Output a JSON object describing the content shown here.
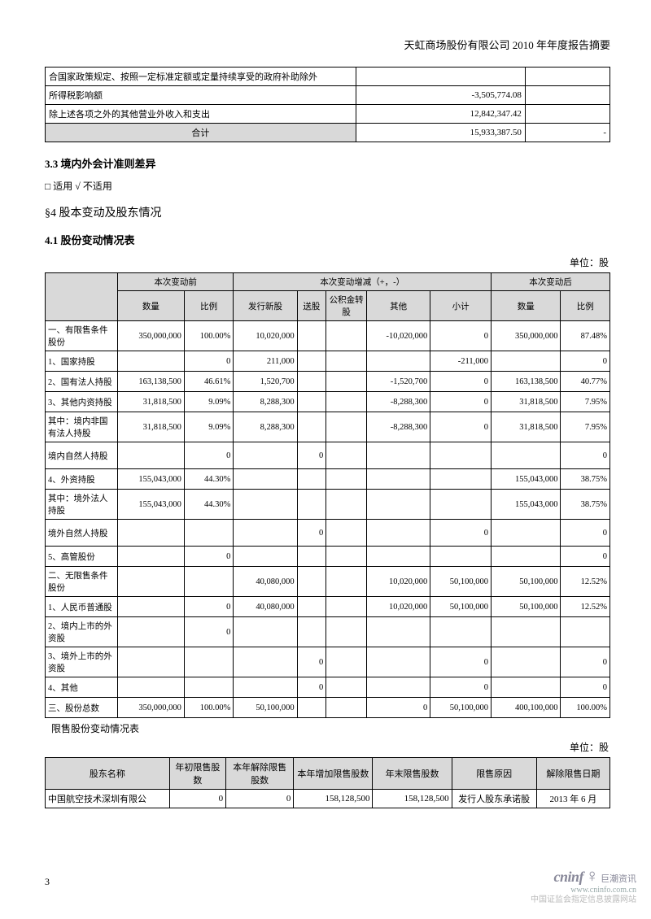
{
  "header_title": "天虹商场股份有限公司 2010 年年度报告摘要",
  "table1": {
    "rows": [
      {
        "label": "合国家政策规定、按照一定标准定额或定量持续享受的政府补助除外",
        "v1": "",
        "v2": ""
      },
      {
        "label": "所得税影响额",
        "v1": "-3,505,774.08",
        "v2": ""
      },
      {
        "label": "除上述各项之外的其他营业外收入和支出",
        "v1": "12,842,347.42",
        "v2": ""
      }
    ],
    "total_label": "合计",
    "total_v1": "15,933,387.50",
    "total_v2": "-"
  },
  "sec33": "3.3 境内外会计准则差异",
  "sec33_line": "□ 适用 √ 不适用",
  "sec4": "§4  股本变动及股东情况",
  "sec41": "4.1 股份变动情况表",
  "unit_label": "单位：股",
  "t2": {
    "group1": "本次变动前",
    "group2": "本次变动增减（+，-）",
    "group3": "本次变动后",
    "h_qty": "数量",
    "h_ratio": "比例",
    "h_new": "发行新股",
    "h_bonus": "送股",
    "h_fund": "公积金转股",
    "h_other": "其他",
    "h_sub": "小计",
    "rows": [
      {
        "l": "一、有限售条件股份",
        "a": "350,000,000",
        "b": "100.00%",
        "c": "10,020,000",
        "d": "",
        "e": "",
        "f": "-10,020,000",
        "g": "0",
        "h": "350,000,000",
        "i": "87.48%",
        "tall": true
      },
      {
        "l": "1、国家持股",
        "a": "",
        "b": "0",
        "c": "211,000",
        "d": "",
        "e": "",
        "f": "",
        "g": "-211,000",
        "h": "",
        "i": "0"
      },
      {
        "l": "2、国有法人持股",
        "a": "163,138,500",
        "b": "46.61%",
        "c": "1,520,700",
        "d": "",
        "e": "",
        "f": "-1,520,700",
        "g": "0",
        "h": "163,138,500",
        "i": "40.77%"
      },
      {
        "l": "3、其他内资持股",
        "a": "31,818,500",
        "b": "9.09%",
        "c": "8,288,300",
        "d": "",
        "e": "",
        "f": "-8,288,300",
        "g": "0",
        "h": "31,818,500",
        "i": "7.95%"
      },
      {
        "l": "其中：境内非国有法人持股",
        "a": "31,818,500",
        "b": "9.09%",
        "c": "8,288,300",
        "d": "",
        "e": "",
        "f": "-8,288,300",
        "g": "0",
        "h": "31,818,500",
        "i": "7.95%",
        "tall": true
      },
      {
        "l": "     境内自然人持股",
        "a": "",
        "b": "0",
        "c": "",
        "d": "0",
        "e": "",
        "f": "",
        "g": "",
        "h": "",
        "i": "0",
        "tall": true
      },
      {
        "l": "4、外资持股",
        "a": "155,043,000",
        "b": "44.30%",
        "c": "",
        "d": "",
        "e": "",
        "f": "",
        "g": "",
        "h": "155,043,000",
        "i": "38.75%"
      },
      {
        "l": "其中：境外法人持股",
        "a": "155,043,000",
        "b": "44.30%",
        "c": "",
        "d": "",
        "e": "",
        "f": "",
        "g": "",
        "h": "155,043,000",
        "i": "38.75%",
        "tall": true
      },
      {
        "l": "     境外自然人持股",
        "a": "",
        "b": "",
        "c": "",
        "d": "0",
        "e": "",
        "f": "",
        "g": "0",
        "h": "",
        "i": "0",
        "tall": true
      },
      {
        "l": "5、高管股份",
        "a": "",
        "b": "0",
        "c": "",
        "d": "",
        "e": "",
        "f": "",
        "g": "",
        "h": "",
        "i": "0"
      },
      {
        "l": "二、无限售条件股份",
        "a": "",
        "b": "",
        "c": "40,080,000",
        "d": "",
        "e": "",
        "f": "10,020,000",
        "g": "50,100,000",
        "h": "50,100,000",
        "i": "12.52%",
        "tall": true
      },
      {
        "l": "1、人民币普通股",
        "a": "",
        "b": "0",
        "c": "40,080,000",
        "d": "",
        "e": "",
        "f": "10,020,000",
        "g": "50,100,000",
        "h": "50,100,000",
        "i": "12.52%"
      },
      {
        "l": "2、境内上市的外资股",
        "a": "",
        "b": "0",
        "c": "",
        "d": "",
        "e": "",
        "f": "",
        "g": "",
        "h": "",
        "i": "",
        "tall": true
      },
      {
        "l": "3、境外上市的外资股",
        "a": "",
        "b": "",
        "c": "",
        "d": "0",
        "e": "",
        "f": "",
        "g": "0",
        "h": "",
        "i": "0",
        "tall": true
      },
      {
        "l": "4、其他",
        "a": "",
        "b": "",
        "c": "",
        "d": "0",
        "e": "",
        "f": "",
        "g": "0",
        "h": "",
        "i": "0"
      },
      {
        "l": "三、股份总数",
        "a": "350,000,000",
        "b": "100.00%",
        "c": "50,100,000",
        "d": "",
        "e": "",
        "f": "0",
        "g": "50,100,000",
        "h": "400,100,000",
        "i": "100.00%"
      }
    ]
  },
  "sub_label": "限售股份变动情况表",
  "t3": {
    "h1": "股东名称",
    "h2": "年初限售股数",
    "h3": "本年解除限售股数",
    "h4": "本年增加限售股数",
    "h5": "年末限售股数",
    "h6": "限售原因",
    "h7": "解除限售日期",
    "row": {
      "name": "中国航空技术深圳有限公",
      "a": "0",
      "b": "0",
      "c": "158,128,500",
      "d": "158,128,500",
      "e": "发行人股东承诺股",
      "f": "2013 年 6 月"
    }
  },
  "pagenum": "3",
  "logo": {
    "brand": "cninf",
    "cn": "巨潮资讯",
    "url": "www.cninfo.com.cn",
    "sub": "中国证监会指定信息披露网站"
  }
}
